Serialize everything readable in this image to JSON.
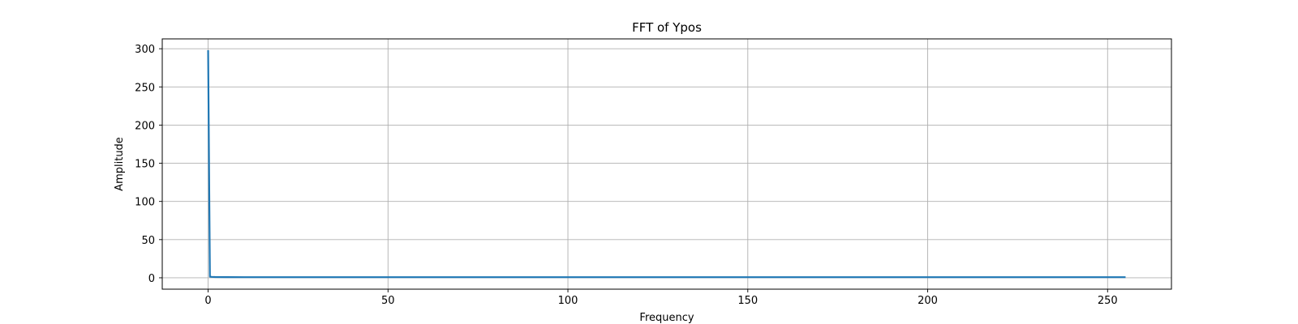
{
  "chart_data": {
    "type": "line",
    "title": "FFT of Ypos",
    "xlabel": "Frequency",
    "ylabel": "Amplitude",
    "xlim": [
      -12.75,
      267.75
    ],
    "ylim": [
      -14.9,
      312.9
    ],
    "xticks": [
      0,
      50,
      100,
      150,
      200,
      250
    ],
    "yticks": [
      0,
      50,
      100,
      150,
      200,
      250,
      300
    ],
    "grid": true,
    "series": [
      {
        "color": "#1f77b4",
        "x": [
          0,
          0.5,
          1,
          2,
          5,
          10,
          20,
          30,
          40,
          50,
          60,
          70,
          80,
          90,
          100,
          110,
          120,
          130,
          140,
          150,
          160,
          170,
          180,
          190,
          200,
          210,
          220,
          230,
          240,
          250,
          255
        ],
        "y": [
          298,
          1.5,
          1.2,
          1.0,
          0.9,
          0.8,
          0.8,
          0.8,
          0.8,
          0.8,
          0.8,
          0.8,
          0.8,
          0.8,
          0.8,
          0.8,
          0.8,
          0.8,
          0.8,
          0.8,
          0.8,
          0.8,
          0.8,
          0.8,
          0.8,
          0.8,
          0.8,
          0.8,
          0.8,
          0.8,
          0.8
        ]
      }
    ]
  }
}
